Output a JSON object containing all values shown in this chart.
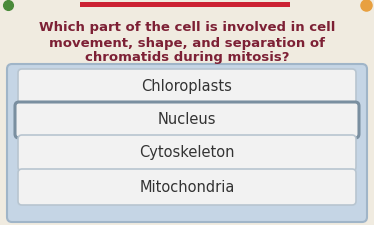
{
  "question_line1": "Which part of the cell is involved in cell",
  "question_line2": "movement, shape, and separation of",
  "question_line3": "chromatids during mitosis?",
  "options": [
    "Chloroplasts",
    "Nucleus",
    "Cytoskeleton",
    "Mitochondria"
  ],
  "background_color": "#f0ebe0",
  "panel_bg": "#c5d5e5",
  "panel_border": "#a0b5c8",
  "button_bg": "#f2f2f2",
  "button_border": "#b8c5d0",
  "nucleus_border": "#7a8fa0",
  "question_color": "#7d2035",
  "option_color": "#333333",
  "top_accent_color": "#cc2233",
  "question_fontsize": 9.5,
  "option_fontsize": 10.5,
  "fig_width": 3.74,
  "fig_height": 2.25,
  "dpi": 100
}
